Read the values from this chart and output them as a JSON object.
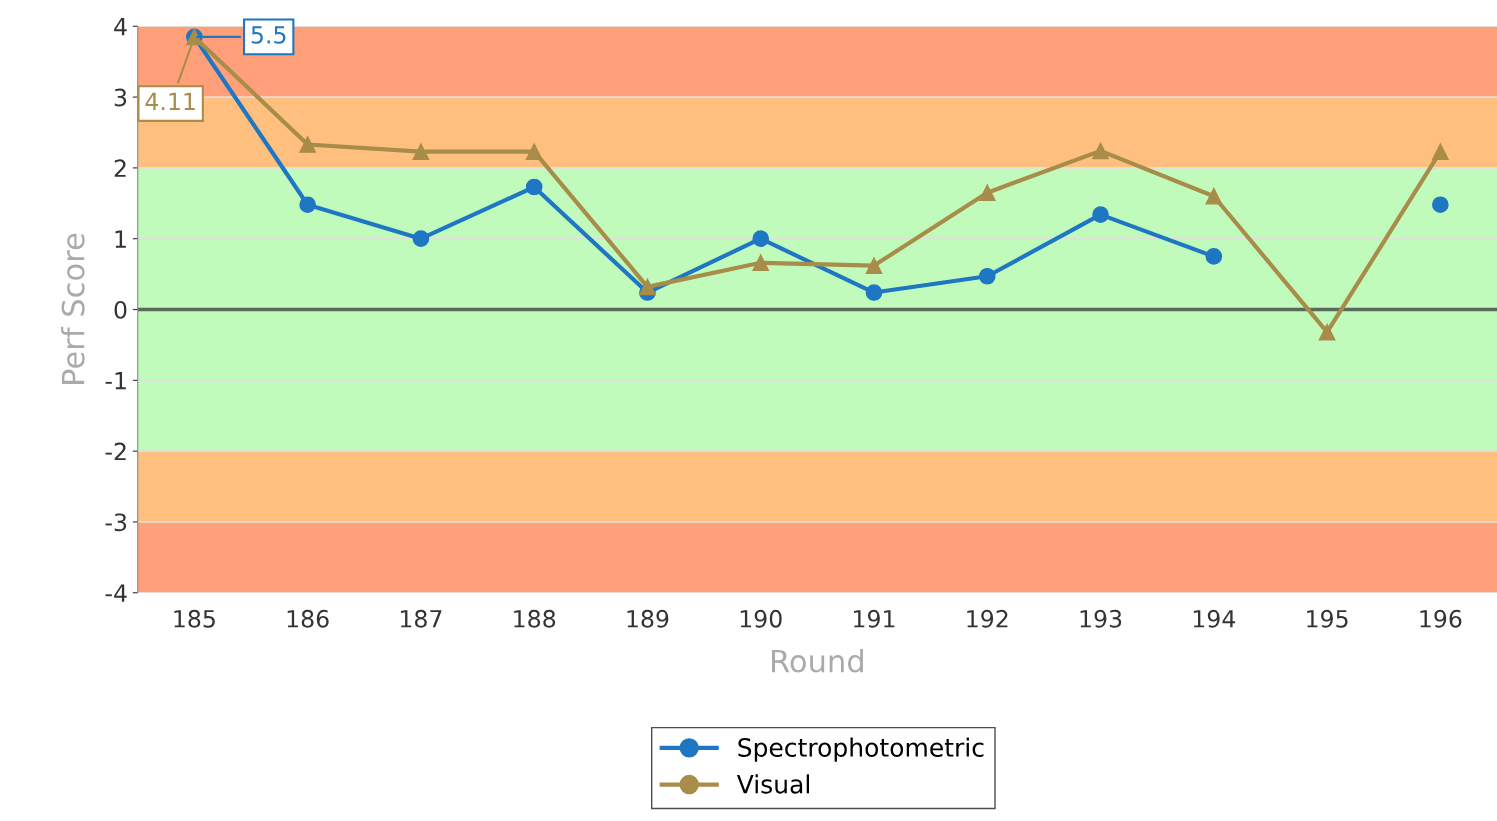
{
  "chart_data": {
    "type": "line",
    "xlabel": "Round",
    "ylabel": "Perf Score",
    "categories": [
      "185",
      "186",
      "187",
      "188",
      "189",
      "190",
      "191",
      "192",
      "193",
      "194",
      "195",
      "196"
    ],
    "series": [
      {
        "name": "Spectrophotometric",
        "color": "#1f77c4",
        "marker": "circle",
        "values": [
          3.85,
          1.48,
          1.0,
          1.73,
          0.24,
          1.0,
          0.24,
          0.47,
          1.34,
          0.75,
          null,
          1.48
        ]
      },
      {
        "name": "Visual",
        "color": "#a88c4a",
        "marker": "triangle",
        "values": [
          3.85,
          2.33,
          2.23,
          2.23,
          0.32,
          0.66,
          0.62,
          1.65,
          2.24,
          1.6,
          -0.32,
          2.23
        ]
      }
    ],
    "annotations": [
      {
        "text": "5.5",
        "x": "185",
        "y": 3.85
      },
      {
        "text": "4.11",
        "x": "185",
        "y": 3.85
      }
    ],
    "ylim": [
      -4,
      4
    ],
    "yticks": [
      -4,
      -3,
      -2,
      -1,
      0,
      1,
      2,
      3,
      4
    ],
    "bands": [
      {
        "axis": "y",
        "from": 3,
        "to": 4,
        "color": "#ffa07a"
      },
      {
        "axis": "y",
        "from": 2,
        "to": 3,
        "color": "#ffbf7f"
      },
      {
        "axis": "y",
        "from": -2,
        "to": 2,
        "color": "#c0fbbc"
      },
      {
        "axis": "y",
        "from": -3,
        "to": -2,
        "color": "#ffbf7f"
      },
      {
        "axis": "y",
        "from": -4,
        "to": -3,
        "color": "#ffa07a"
      }
    ],
    "ref_lines": [
      {
        "axis": "y",
        "value": 0,
        "color": "#5a6a5a"
      }
    ],
    "grid": "y",
    "legend": "bottom"
  }
}
